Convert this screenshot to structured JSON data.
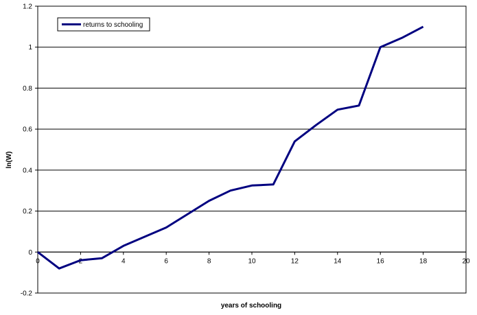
{
  "chart_data": {
    "type": "line",
    "xlabel": "years of schooling",
    "ylabel": "ln(W)",
    "xlim": [
      0,
      20
    ],
    "ylim": [
      -0.2,
      1.2
    ],
    "x_ticks": [
      "0",
      "2",
      "4",
      "6",
      "8",
      "10",
      "12",
      "14",
      "16",
      "18",
      "20"
    ],
    "y_ticks": [
      "-0.2",
      "0",
      "0.2",
      "0.4",
      "0.6",
      "0.8",
      "1",
      "1.2"
    ],
    "grid": "horizontal",
    "legend_position": "top-left",
    "series": [
      {
        "name": "returns to schooling",
        "color": "#000080",
        "x": [
          0,
          1,
          2,
          3,
          4,
          6,
          8,
          9,
          10,
          11,
          12,
          13,
          14,
          15,
          16,
          17,
          18
        ],
        "y": [
          0,
          -0.08,
          -0.04,
          -0.03,
          0.03,
          0.12,
          0.25,
          0.3,
          0.325,
          0.33,
          0.54,
          0.62,
          0.695,
          0.715,
          1.0,
          1.045,
          1.1
        ]
      }
    ]
  }
}
